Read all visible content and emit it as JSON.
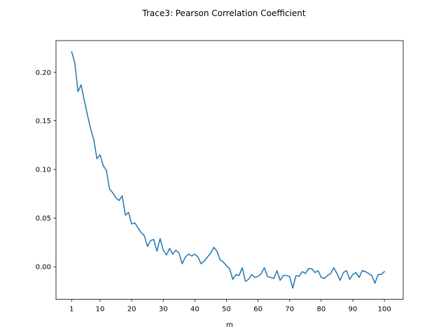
{
  "chart_data": {
    "type": "line",
    "title": "Trace3: Pearson Correlation Coefficient",
    "xlabel": "m",
    "ylabel": "",
    "xlim": [
      -3.95,
      105.95
    ],
    "ylim": [
      -0.0335,
      0.2325
    ],
    "grid": false,
    "legend": "none",
    "xticks": [
      1,
      10,
      20,
      30,
      40,
      50,
      60,
      70,
      80,
      90,
      100
    ],
    "xtick_labels": [
      "1",
      "10",
      "20",
      "30",
      "40",
      "50",
      "60",
      "70",
      "80",
      "90",
      "100"
    ],
    "yticks": [
      0.0,
      0.05,
      0.1,
      0.15,
      0.2
    ],
    "ytick_labels": [
      "0.00",
      "0.05",
      "0.10",
      "0.15",
      "0.20"
    ],
    "series": [
      {
        "color": "#1f77b4",
        "x": [
          1,
          2,
          3,
          4,
          5,
          6,
          7,
          8,
          9,
          10,
          11,
          12,
          13,
          14,
          15,
          16,
          17,
          18,
          19,
          20,
          21,
          22,
          23,
          24,
          25,
          26,
          27,
          28,
          29,
          30,
          31,
          32,
          33,
          34,
          35,
          36,
          37,
          38,
          39,
          40,
          41,
          42,
          43,
          44,
          45,
          46,
          47,
          48,
          49,
          50,
          51,
          52,
          53,
          54,
          55,
          56,
          57,
          58,
          59,
          60,
          61,
          62,
          63,
          64,
          65,
          66,
          67,
          68,
          69,
          70,
          71,
          72,
          73,
          74,
          75,
          76,
          77,
          78,
          79,
          80,
          81,
          82,
          83,
          84,
          85,
          86,
          87,
          88,
          89,
          90,
          91,
          92,
          93,
          94,
          95,
          96,
          97,
          98,
          99,
          100
        ],
        "values": [
          0.221,
          0.21,
          0.18,
          0.187,
          0.171,
          0.156,
          0.142,
          0.131,
          0.111,
          0.115,
          0.104,
          0.099,
          0.08,
          0.076,
          0.071,
          0.068,
          0.073,
          0.053,
          0.056,
          0.044,
          0.045,
          0.04,
          0.035,
          0.032,
          0.021,
          0.027,
          0.028,
          0.016,
          0.029,
          0.017,
          0.012,
          0.019,
          0.013,
          0.017,
          0.014,
          0.003,
          0.01,
          0.013,
          0.011,
          0.013,
          0.01,
          0.003,
          0.006,
          0.01,
          0.014,
          0.02,
          0.016,
          0.007,
          0.005,
          0.001,
          -0.002,
          -0.013,
          -0.008,
          -0.009,
          -0.001,
          -0.015,
          -0.013,
          -0.008,
          -0.011,
          -0.01,
          -0.007,
          -0.001,
          -0.01,
          -0.011,
          -0.012,
          -0.004,
          -0.014,
          -0.009,
          -0.009,
          -0.01,
          -0.022,
          -0.009,
          -0.01,
          -0.005,
          -0.007,
          -0.002,
          -0.002,
          -0.006,
          -0.004,
          -0.011,
          -0.012,
          -0.009,
          -0.007,
          -0.001,
          -0.007,
          -0.014,
          -0.006,
          -0.004,
          -0.013,
          -0.008,
          -0.006,
          -0.011,
          -0.004,
          -0.005,
          -0.007,
          -0.009,
          -0.017,
          -0.008,
          -0.008,
          -0.005
        ]
      }
    ]
  }
}
